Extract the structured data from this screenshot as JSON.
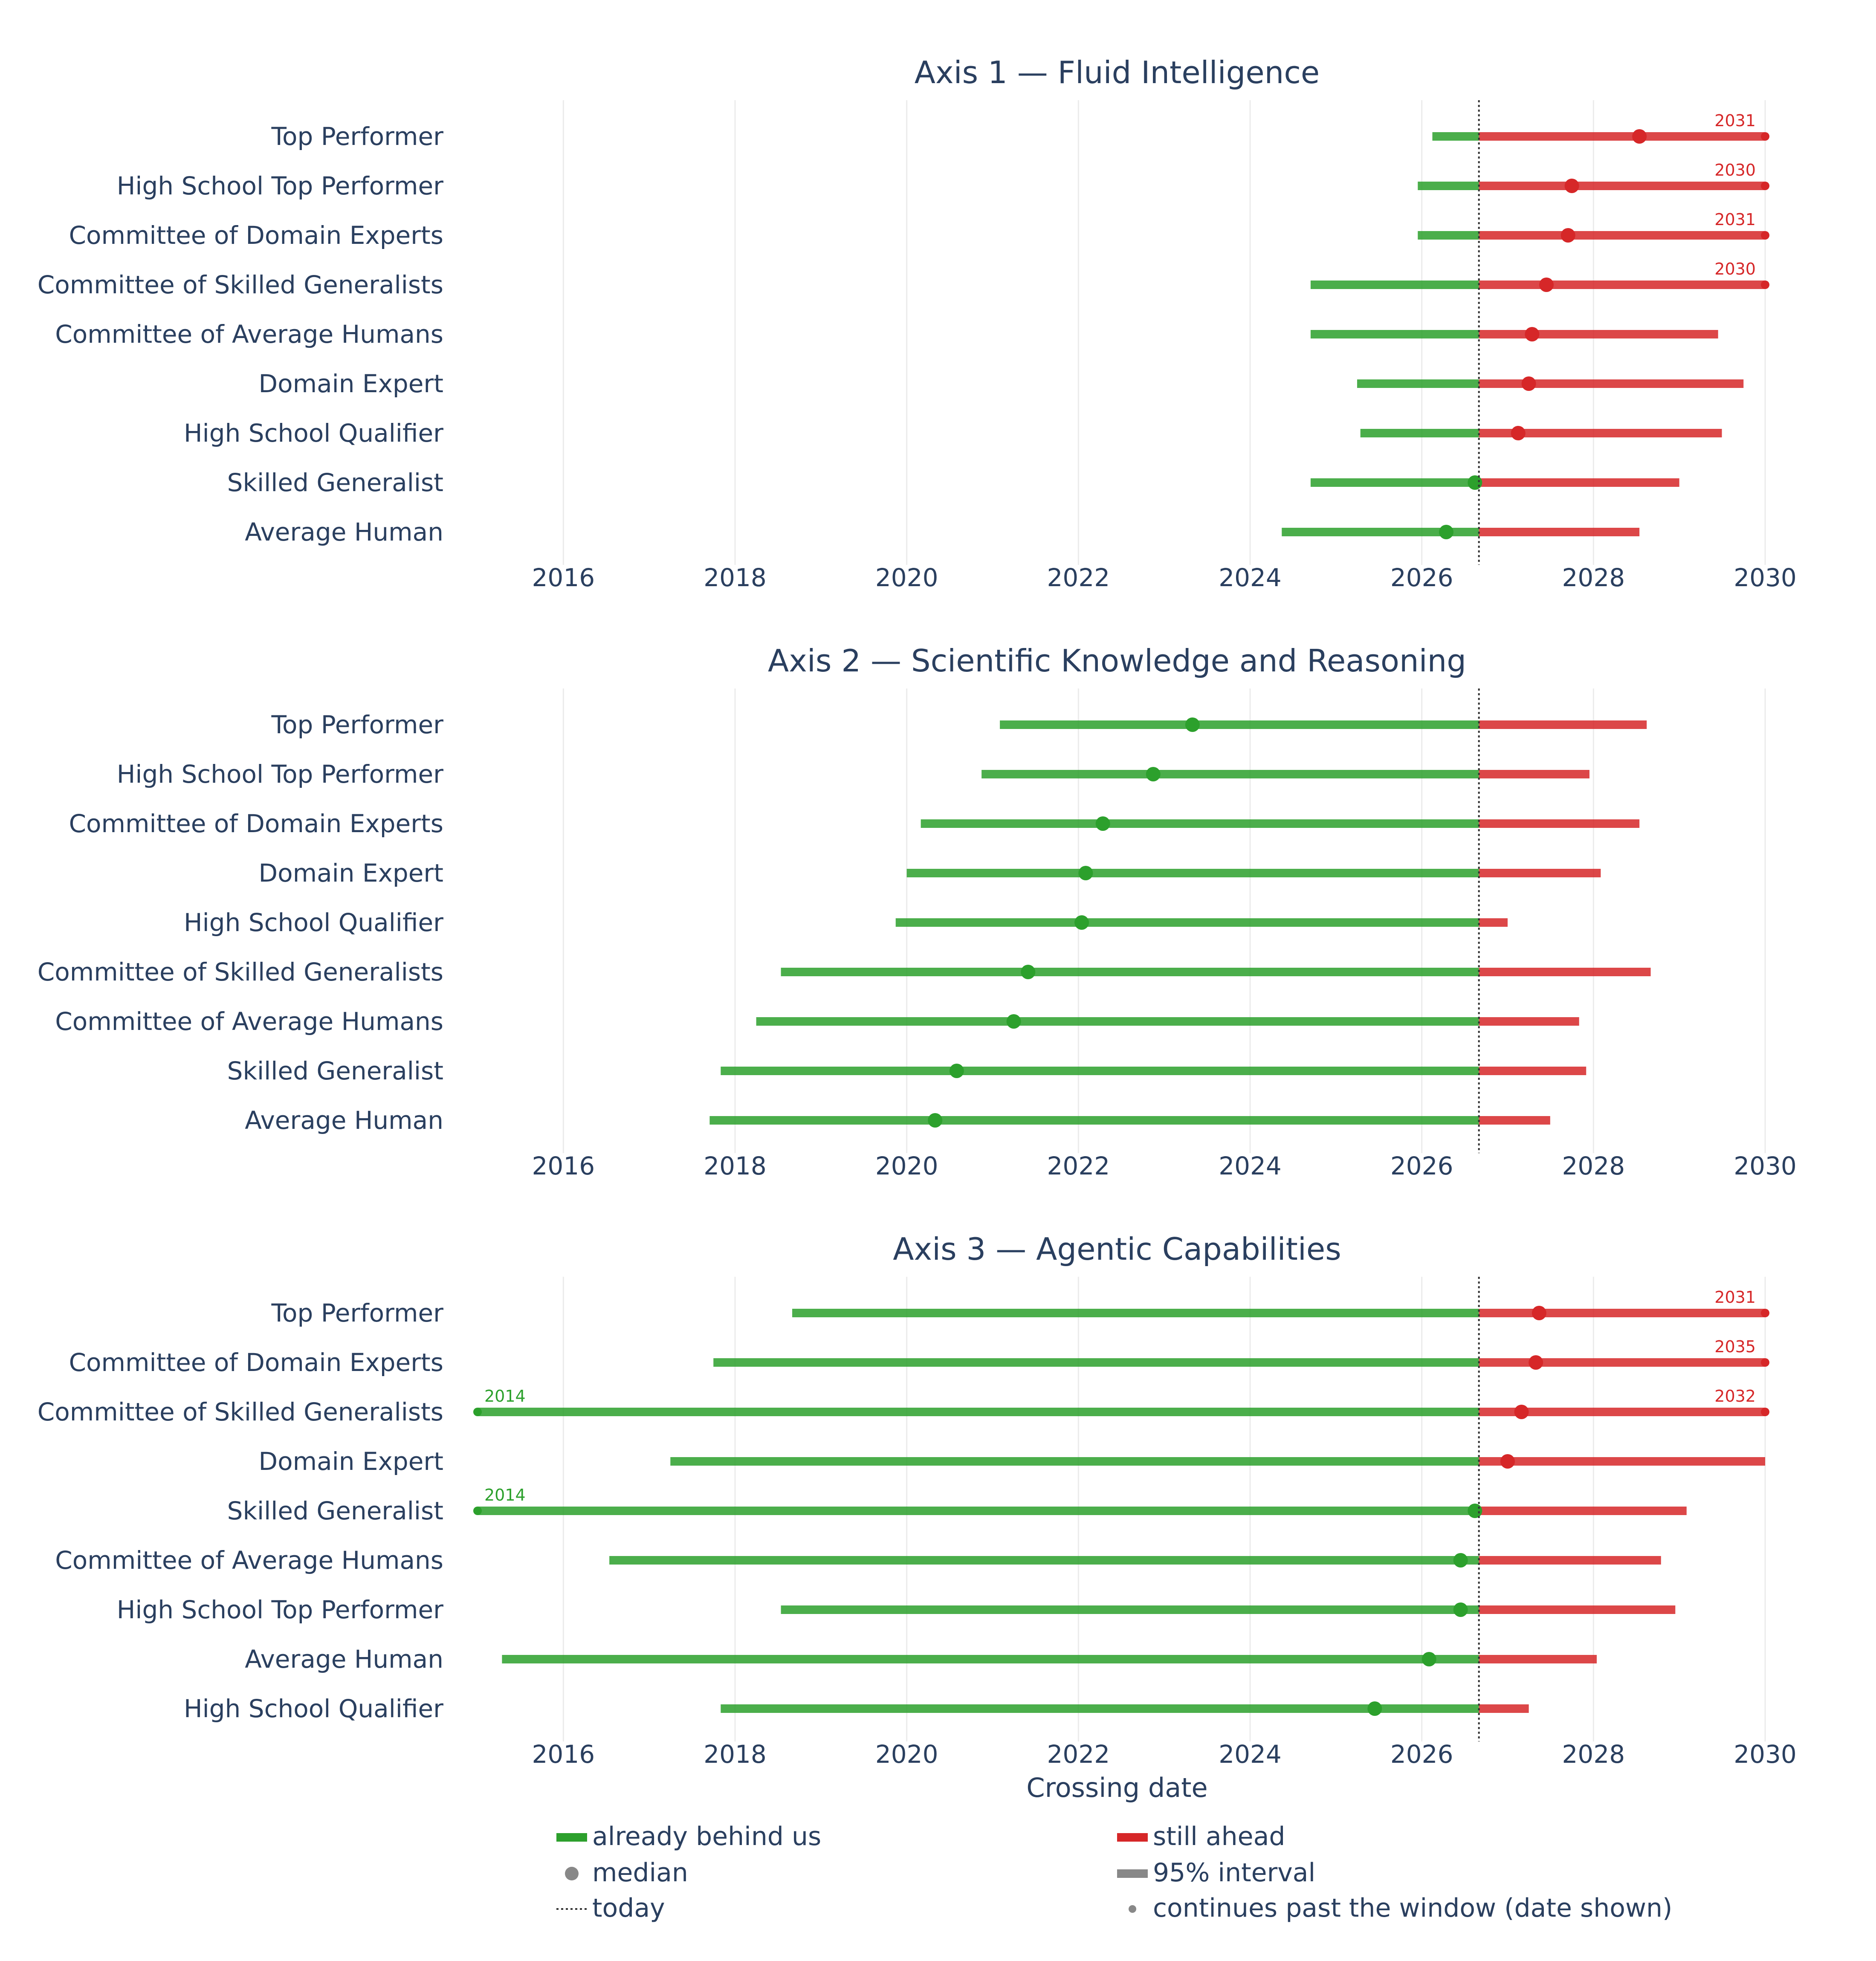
{
  "chart_data": {
    "type": "range",
    "xlabel": "Crossing date",
    "xlim": [
      "2015-01-01",
      "2030-01-01"
    ],
    "x_ticks": [
      "2016",
      "2018",
      "2020",
      "2022",
      "2024",
      "2026",
      "2028",
      "2030"
    ],
    "today": "2026-09-01",
    "grid": true,
    "colors": {
      "behind": "#2ca02c",
      "ahead": "#d62728",
      "median_legend": "#888888",
      "grid": "#ebebeb",
      "text": "#2a3f5f"
    },
    "legend": {
      "items": [
        {
          "key": "behind",
          "label": "already behind us"
        },
        {
          "key": "ahead",
          "label": "still ahead"
        },
        {
          "key": "median",
          "label": "median"
        },
        {
          "key": "interval",
          "label": "95% interval"
        },
        {
          "key": "today",
          "label": "today"
        },
        {
          "key": "continues",
          "label": "continues past the window (date shown)"
        }
      ]
    },
    "panels": [
      {
        "title": "Axis 1 — Fluid Intelligence",
        "rows": [
          {
            "label": "Top Performer",
            "low": "2026-02-15",
            "median": "2028-07-15",
            "high": "2030-01-01",
            "high_note": "2031"
          },
          {
            "label": "High School Top Performer",
            "low": "2025-12-15",
            "median": "2027-10-01",
            "high": "2030-01-01",
            "high_note": "2030"
          },
          {
            "label": "Committee of Domain Experts",
            "low": "2025-12-15",
            "median": "2027-09-15",
            "high": "2030-01-01",
            "high_note": "2031"
          },
          {
            "label": "Committee of Skilled Generalists",
            "low": "2024-09-15",
            "median": "2027-06-15",
            "high": "2030-01-01",
            "high_note": "2030"
          },
          {
            "label": "Committee of Average Humans",
            "low": "2024-09-15",
            "median": "2027-04-15",
            "high": "2029-06-15"
          },
          {
            "label": "Domain Expert",
            "low": "2025-04-01",
            "median": "2027-04-01",
            "high": "2029-10-01"
          },
          {
            "label": "High School Qualifier",
            "low": "2025-04-15",
            "median": "2027-02-15",
            "high": "2029-07-01"
          },
          {
            "label": "Skilled Generalist",
            "low": "2024-09-15",
            "median": "2026-08-15",
            "high": "2029-01-01"
          },
          {
            "label": "Average Human",
            "low": "2024-05-15",
            "median": "2026-04-15",
            "high": "2028-07-15"
          }
        ]
      },
      {
        "title": "Axis 2 — Scientific Knowledge and Reasoning",
        "rows": [
          {
            "label": "Top Performer",
            "low": "2021-02-01",
            "median": "2023-05-01",
            "high": "2028-08-15"
          },
          {
            "label": "High School Top Performer",
            "low": "2020-11-15",
            "median": "2022-11-15",
            "high": "2027-12-15"
          },
          {
            "label": "Committee of Domain Experts",
            "low": "2020-03-01",
            "median": "2022-04-15",
            "high": "2028-07-15"
          },
          {
            "label": "Domain Expert",
            "low": "2020-01-01",
            "median": "2022-02-01",
            "high": "2028-02-01"
          },
          {
            "label": "High School Qualifier",
            "low": "2019-11-15",
            "median": "2022-01-15",
            "high": "2027-01-01"
          },
          {
            "label": "Committee of Skilled Generalists",
            "low": "2018-07-15",
            "median": "2021-06-01",
            "high": "2028-09-01"
          },
          {
            "label": "Committee of Average Humans",
            "low": "2018-04-01",
            "median": "2021-04-01",
            "high": "2027-11-01"
          },
          {
            "label": "Skilled Generalist",
            "low": "2017-11-01",
            "median": "2020-08-01",
            "high": "2027-12-01"
          },
          {
            "label": "Average Human",
            "low": "2017-09-15",
            "median": "2020-05-01",
            "high": "2027-07-01"
          }
        ]
      },
      {
        "title": "Axis 3 — Agentic Capabilities",
        "rows": [
          {
            "label": "Top Performer",
            "low": "2018-09-01",
            "median": "2027-05-15",
            "high": "2030-01-01",
            "high_note": "2031"
          },
          {
            "label": "Committee of Domain Experts",
            "low": "2017-10-01",
            "median": "2027-05-01",
            "high": "2030-01-01",
            "high_note": "2035"
          },
          {
            "label": "Committee of Skilled Generalists",
            "low": "2015-01-01",
            "low_note": "2014",
            "median": "2027-03-01",
            "high": "2030-01-01",
            "high_note": "2032"
          },
          {
            "label": "Domain Expert",
            "low": "2017-04-01",
            "median": "2027-01-01",
            "high": "2030-01-01"
          },
          {
            "label": "Skilled Generalist",
            "low": "2015-01-01",
            "low_note": "2014",
            "median": "2026-08-15",
            "high": "2029-02-01"
          },
          {
            "label": "Committee of Average Humans",
            "low": "2016-07-15",
            "median": "2026-06-15",
            "high": "2028-10-15"
          },
          {
            "label": "High School Top Performer",
            "low": "2018-07-15",
            "median": "2026-06-15",
            "high": "2028-12-15"
          },
          {
            "label": "Average Human",
            "low": "2015-04-15",
            "median": "2026-02-01",
            "high": "2028-01-15"
          },
          {
            "label": "High School Qualifier",
            "low": "2017-11-01",
            "median": "2025-06-15",
            "high": "2027-04-01"
          }
        ]
      }
    ]
  }
}
